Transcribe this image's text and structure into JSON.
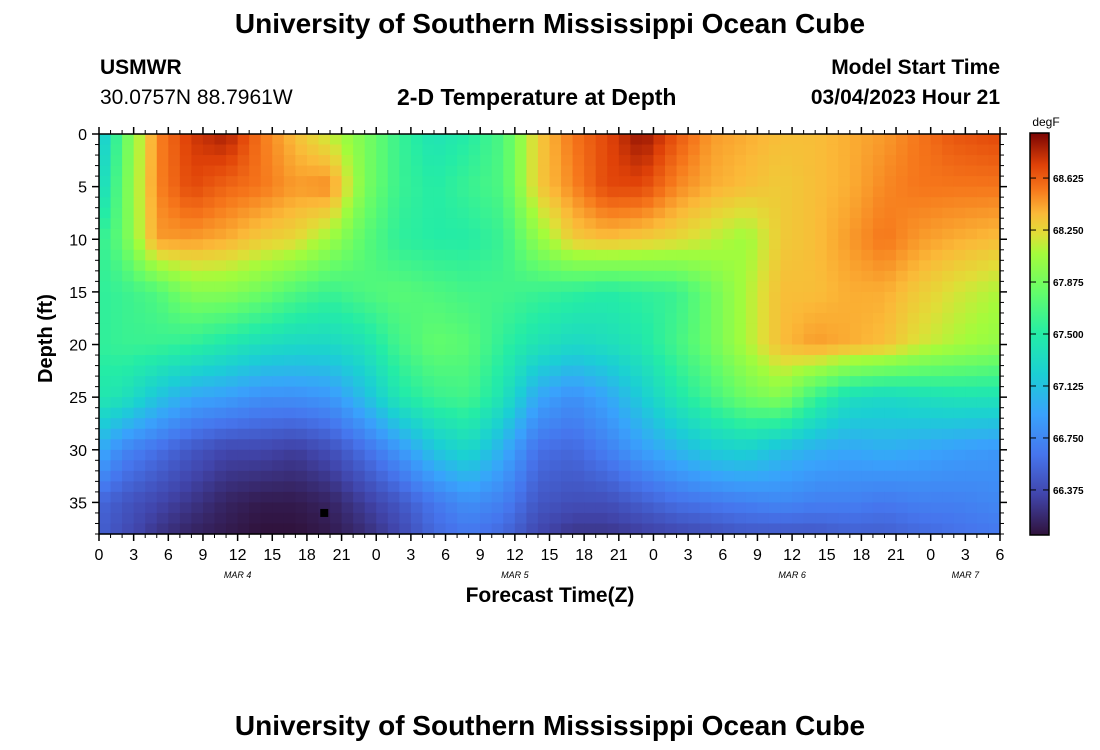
{
  "page": {
    "title": "University of Southern Mississippi Ocean Cube",
    "footer_title": "University of Southern Mississippi Ocean Cube",
    "station": "USMWR",
    "coordinates": "30.0757N  88.7961W",
    "model_start_label": "Model Start Time",
    "model_start_value": "03/04/2023 Hour 21"
  },
  "chart_data": {
    "type": "heatmap",
    "title": "2-D Temperature at Depth",
    "xlabel": "Forecast Time(Z)",
    "ylabel": "Depth (ft)",
    "colorbar_unit": "degF",
    "colorbar_ticks": [
      "68.625",
      "68.250",
      "67.875",
      "67.500",
      "67.125",
      "66.750",
      "66.375"
    ],
    "colorbar_tick_values": [
      68.625,
      68.25,
      67.875,
      67.5,
      67.125,
      66.75,
      66.375
    ],
    "value_range": [
      66.05,
      68.95
    ],
    "ylim": [
      0,
      38
    ],
    "y_ticks": [
      0,
      5,
      10,
      15,
      20,
      25,
      30,
      35
    ],
    "x_range_hours": [
      0,
      78
    ],
    "x_tick_labels": [
      "0",
      "3",
      "6",
      "9",
      "12",
      "15",
      "18",
      "21",
      "0",
      "3",
      "6",
      "9",
      "12",
      "15",
      "18",
      "21",
      "0",
      "3",
      "6",
      "9",
      "12",
      "15",
      "18",
      "21",
      "0",
      "3",
      "6"
    ],
    "day_labels": [
      {
        "label": "MAR 4",
        "hour": 12
      },
      {
        "label": "MAR 5",
        "hour": 36
      },
      {
        "label": "MAR 6",
        "hour": 60
      },
      {
        "label": "MAR 7",
        "hour": 75
      }
    ],
    "grid_cols": 78,
    "grid_rows": 38,
    "sample_rows_depth_ft": [
      0,
      5,
      10,
      15,
      20,
      25,
      30,
      35,
      38
    ],
    "sample_cols_hour": [
      0,
      2,
      5,
      8,
      11,
      14,
      17,
      20,
      23,
      26,
      29,
      32,
      35,
      38,
      41,
      44,
      47,
      50,
      53,
      56,
      59,
      62,
      65,
      68,
      71,
      74,
      78
    ],
    "temperature_grid": [
      [
        67.1,
        67.75,
        68.5,
        68.75,
        68.85,
        68.55,
        68.35,
        68.15,
        67.9,
        67.6,
        67.4,
        67.5,
        67.7,
        68.3,
        68.55,
        68.7,
        68.9,
        68.65,
        68.45,
        68.4,
        68.35,
        68.35,
        68.4,
        68.45,
        68.55,
        68.65,
        68.7
      ],
      [
        67.25,
        67.8,
        68.5,
        68.7,
        68.6,
        68.55,
        68.45,
        68.5,
        67.9,
        67.6,
        67.5,
        67.6,
        67.7,
        68.3,
        68.5,
        68.7,
        68.7,
        68.5,
        68.4,
        68.35,
        68.3,
        68.35,
        68.4,
        68.5,
        68.55,
        68.55,
        68.55
      ],
      [
        67.55,
        67.8,
        68.45,
        68.45,
        68.4,
        68.3,
        68.25,
        68.05,
        67.75,
        67.55,
        67.5,
        67.5,
        67.6,
        68.0,
        68.3,
        68.35,
        68.3,
        68.25,
        68.15,
        68.05,
        68.3,
        68.35,
        68.45,
        68.55,
        68.45,
        68.4,
        68.35
      ],
      [
        67.55,
        67.6,
        67.7,
        67.95,
        67.95,
        67.85,
        67.7,
        67.6,
        67.7,
        67.75,
        67.7,
        67.65,
        67.65,
        67.6,
        67.55,
        67.5,
        67.55,
        67.6,
        67.85,
        68.1,
        68.35,
        68.35,
        68.4,
        68.4,
        68.3,
        68.2,
        68.1
      ],
      [
        67.55,
        67.6,
        67.6,
        67.55,
        67.45,
        67.35,
        67.3,
        67.3,
        67.4,
        67.65,
        67.8,
        67.75,
        67.55,
        67.4,
        67.3,
        67.35,
        67.45,
        67.65,
        67.85,
        68.1,
        68.35,
        68.45,
        68.4,
        68.35,
        68.2,
        68.1,
        68.0
      ],
      [
        67.45,
        67.4,
        67.15,
        66.95,
        66.9,
        66.8,
        66.8,
        66.85,
        67.1,
        67.45,
        67.6,
        67.65,
        67.4,
        66.95,
        66.8,
        66.95,
        67.2,
        67.45,
        67.65,
        67.85,
        67.95,
        67.6,
        67.35,
        67.3,
        67.35,
        67.4,
        67.4
      ],
      [
        67.0,
        66.75,
        66.6,
        66.45,
        66.35,
        66.35,
        66.3,
        66.4,
        66.6,
        66.85,
        67.15,
        67.3,
        67.0,
        66.6,
        66.55,
        66.7,
        66.9,
        67.05,
        67.2,
        67.25,
        67.1,
        67.0,
        66.95,
        67.0,
        66.95,
        66.9,
        66.85
      ],
      [
        66.55,
        66.45,
        66.35,
        66.25,
        66.15,
        66.1,
        66.1,
        66.15,
        66.3,
        66.45,
        66.65,
        66.8,
        66.7,
        66.45,
        66.4,
        66.4,
        66.5,
        66.6,
        66.65,
        66.7,
        66.75,
        66.7,
        66.7,
        66.65,
        66.7,
        66.7,
        66.75
      ],
      [
        66.5,
        66.4,
        66.25,
        66.15,
        66.1,
        66.05,
        66.05,
        66.1,
        66.2,
        66.35,
        66.55,
        66.65,
        66.55,
        66.35,
        66.25,
        66.25,
        66.3,
        66.35,
        66.4,
        66.45,
        66.45,
        66.45,
        66.5,
        66.5,
        66.55,
        66.6,
        66.65
      ]
    ],
    "annotation": {
      "label": "marker",
      "hour": 19.5,
      "depth_ft": 36
    }
  }
}
